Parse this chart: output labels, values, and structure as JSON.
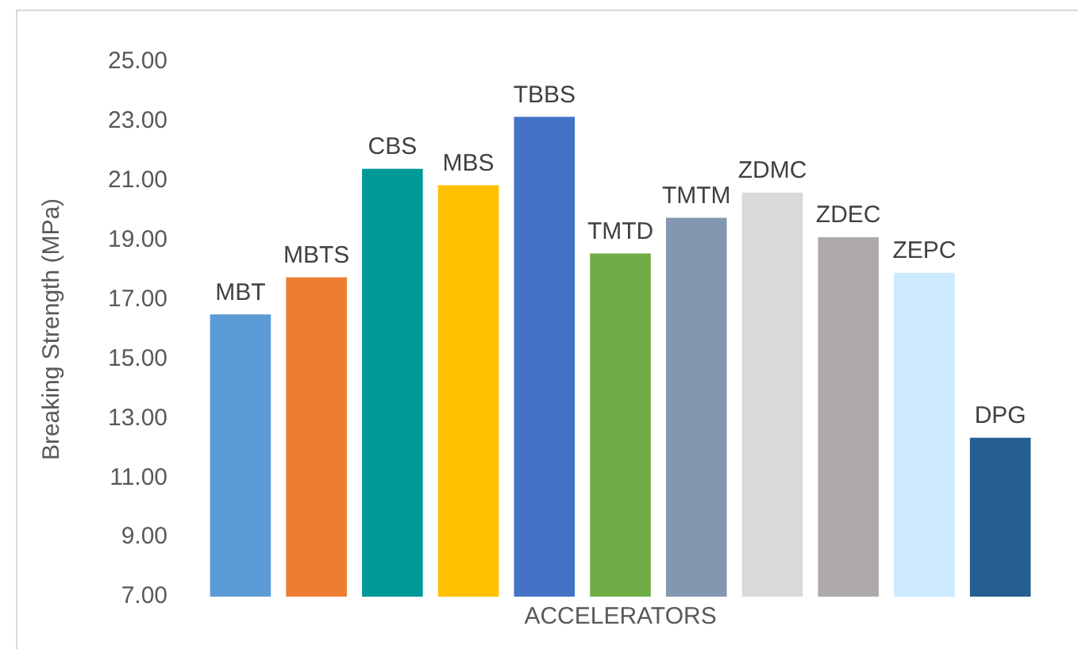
{
  "chart_data": {
    "type": "bar",
    "ylabel": "Breaking Strength (MPa)",
    "xlabel": "ACCELERATORS",
    "categories": [
      "MBT",
      "MBTS",
      "CBS",
      "MBS",
      "TBBS",
      "TMTD",
      "TMTM",
      "ZDMC",
      "ZDEC",
      "ZEPC",
      "DPG"
    ],
    "values": [
      16.5,
      17.75,
      21.4,
      20.85,
      23.15,
      18.55,
      19.75,
      20.6,
      19.1,
      17.9,
      12.35
    ],
    "colors": [
      "#5b9bd5",
      "#ed7d31",
      "#009999",
      "#ffc000",
      "#4472c4",
      "#70ad47",
      "#8497b0",
      "#d9d9d9",
      "#aeaaaa",
      "#cce9fd",
      "#255e91"
    ],
    "ylim": [
      7,
      25
    ],
    "yticks": [
      {
        "value": 7,
        "label": "7.00"
      },
      {
        "value": 9,
        "label": "9.00"
      },
      {
        "value": 11,
        "label": "11.00"
      },
      {
        "value": 13,
        "label": "13.00"
      },
      {
        "value": 15,
        "label": "15.00"
      },
      {
        "value": 17,
        "label": "17.00"
      },
      {
        "value": 19,
        "label": "19.00"
      },
      {
        "value": 21,
        "label": "21.00"
      },
      {
        "value": 23,
        "label": "23.00"
      },
      {
        "value": 25,
        "label": "25.00"
      }
    ],
    "grid": false,
    "legend": false
  }
}
